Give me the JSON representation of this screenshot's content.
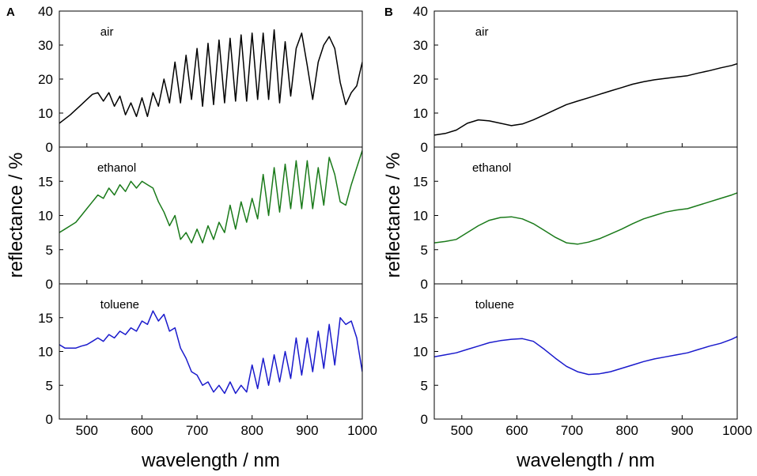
{
  "chart_data": [
    {
      "type": "line",
      "panel_letter": "A",
      "xlabel": "wavelength / nm",
      "ylabel": "reflectance / %",
      "xlim": [
        450,
        1000
      ],
      "x_ticks": [
        500,
        600,
        700,
        800,
        900,
        1000
      ],
      "x_tick_labels": [
        "500",
        "600",
        "700",
        "800",
        "900",
        "1000"
      ],
      "subplots": [
        {
          "label": "air",
          "color": "#000000",
          "ylim": [
            0,
            40
          ],
          "y_ticks": [
            0,
            10,
            20,
            30,
            40
          ],
          "y_tick_labels": [
            "0",
            "10",
            "20",
            "30",
            "40"
          ],
          "series": {
            "x": [
              450,
              470,
              480,
              490,
              500,
              510,
              520,
              530,
              540,
              550,
              560,
              570,
              580,
              590,
              600,
              610,
              620,
              630,
              640,
              650,
              660,
              670,
              680,
              690,
              700,
              710,
              720,
              730,
              740,
              750,
              760,
              770,
              780,
              790,
              800,
              810,
              820,
              830,
              840,
              850,
              860,
              870,
              880,
              890,
              900,
              910,
              920,
              930,
              940,
              950,
              960,
              970,
              980,
              990,
              1000
            ],
            "y": [
              7,
              9.5,
              11,
              12.5,
              14,
              15.5,
              16,
              13.5,
              16,
              12,
              15,
              9.5,
              13,
              9,
              14.5,
              9,
              16,
              12,
              20,
              13,
              25,
              13,
              27,
              14,
              29,
              12,
              30.5,
              12.5,
              31.5,
              13,
              32,
              13.5,
              33,
              13.5,
              33.5,
              14,
              33.5,
              14,
              34.5,
              13,
              31,
              15,
              29,
              33.5,
              24,
              14,
              25,
              30,
              32.5,
              29,
              19,
              12.5,
              16,
              18,
              25
            ]
          }
        },
        {
          "label": "ethanol",
          "color": "#1a7a1a",
          "ylim": [
            0,
            20
          ],
          "y_ticks": [
            0,
            5,
            10,
            15
          ],
          "y_tick_labels": [
            "0",
            "5",
            "10",
            "15"
          ],
          "series": {
            "x": [
              450,
              460,
              470,
              480,
              490,
              500,
              510,
              520,
              530,
              540,
              550,
              560,
              570,
              580,
              590,
              600,
              610,
              620,
              630,
              640,
              650,
              660,
              670,
              680,
              690,
              700,
              710,
              720,
              730,
              740,
              750,
              760,
              770,
              780,
              790,
              800,
              810,
              820,
              830,
              840,
              850,
              860,
              870,
              880,
              890,
              900,
              910,
              920,
              930,
              940,
              950,
              960,
              970,
              980,
              990,
              1000
            ],
            "y": [
              7.5,
              8,
              8.5,
              9,
              10,
              11,
              12,
              13,
              12.5,
              14,
              13,
              14.5,
              13.5,
              15,
              14,
              15,
              14.5,
              14,
              12,
              10.5,
              8.5,
              10,
              6.5,
              7.5,
              6,
              8,
              6,
              8.5,
              6.5,
              9,
              7.5,
              11.5,
              8,
              12,
              9,
              12.5,
              9.5,
              16,
              10,
              17,
              10.5,
              17.5,
              11,
              18,
              11,
              18,
              11,
              17,
              11.5,
              18.5,
              16,
              12,
              11.5,
              14.5,
              17,
              19.5
            ]
          }
        },
        {
          "label": "toluene",
          "color": "#1a1acc",
          "ylim": [
            0,
            20
          ],
          "y_ticks": [
            0,
            5,
            10,
            15
          ],
          "y_tick_labels": [
            "0",
            "5",
            "10",
            "15"
          ],
          "series": {
            "x": [
              450,
              460,
              470,
              480,
              490,
              500,
              510,
              520,
              530,
              540,
              550,
              560,
              570,
              580,
              590,
              600,
              610,
              620,
              630,
              640,
              650,
              660,
              670,
              680,
              690,
              700,
              710,
              720,
              730,
              740,
              750,
              760,
              770,
              780,
              790,
              800,
              810,
              820,
              830,
              840,
              850,
              860,
              870,
              880,
              890,
              900,
              910,
              920,
              930,
              940,
              950,
              960,
              970,
              980,
              990,
              1000
            ],
            "y": [
              11,
              10.5,
              10.5,
              10.5,
              10.8,
              11,
              11.5,
              12,
              11.5,
              12.5,
              12,
              13,
              12.5,
              13.5,
              13,
              14.5,
              14,
              16,
              14.5,
              15.5,
              13,
              13.5,
              10.5,
              9,
              7,
              6.5,
              5,
              5.5,
              4,
              5,
              3.8,
              5.5,
              3.8,
              5,
              4,
              8,
              4.5,
              9,
              5,
              9.5,
              5.5,
              10,
              6,
              12,
              6.5,
              12,
              7,
              13,
              7.5,
              14,
              8,
              15,
              14,
              14.5,
              12,
              7
            ]
          }
        }
      ]
    },
    {
      "type": "line",
      "panel_letter": "B",
      "xlabel": "wavelength / nm",
      "ylabel": "reflectance / %",
      "xlim": [
        450,
        1000
      ],
      "x_ticks": [
        500,
        600,
        700,
        800,
        900,
        1000
      ],
      "x_tick_labels": [
        "500",
        "600",
        "700",
        "800",
        "900",
        "1000"
      ],
      "subplots": [
        {
          "label": "air",
          "color": "#000000",
          "ylim": [
            0,
            40
          ],
          "y_ticks": [
            0,
            10,
            20,
            30,
            40
          ],
          "y_tick_labels": [
            "0",
            "10",
            "20",
            "30",
            "40"
          ],
          "series": {
            "x": [
              450,
              470,
              490,
              510,
              530,
              550,
              570,
              590,
              610,
              630,
              650,
              670,
              690,
              710,
              730,
              750,
              770,
              790,
              810,
              830,
              850,
              870,
              890,
              910,
              930,
              950,
              970,
              990,
              1000
            ],
            "y": [
              3.5,
              4,
              5,
              7,
              8,
              7.7,
              7,
              6.3,
              6.8,
              8,
              9.5,
              11,
              12.5,
              13.5,
              14.5,
              15.5,
              16.5,
              17.5,
              18.5,
              19.2,
              19.8,
              20.2,
              20.6,
              21,
              21.8,
              22.5,
              23.3,
              24,
              24.5
            ]
          }
        },
        {
          "label": "ethanol",
          "color": "#1a7a1a",
          "ylim": [
            0,
            20
          ],
          "y_ticks": [
            0,
            5,
            10,
            15
          ],
          "y_tick_labels": [
            "0",
            "5",
            "10",
            "15"
          ],
          "series": {
            "x": [
              450,
              470,
              490,
              510,
              530,
              550,
              570,
              590,
              610,
              630,
              650,
              670,
              690,
              710,
              730,
              750,
              770,
              790,
              810,
              830,
              850,
              870,
              890,
              910,
              930,
              950,
              970,
              990,
              1000
            ],
            "y": [
              6,
              6.2,
              6.5,
              7.5,
              8.5,
              9.3,
              9.7,
              9.8,
              9.5,
              8.8,
              7.8,
              6.8,
              6,
              5.8,
              6.1,
              6.6,
              7.3,
              8,
              8.8,
              9.5,
              10,
              10.5,
              10.8,
              11,
              11.5,
              12,
              12.5,
              13,
              13.3
            ]
          }
        },
        {
          "label": "toluene",
          "color": "#1a1acc",
          "ylim": [
            0,
            20
          ],
          "y_ticks": [
            0,
            5,
            10,
            15
          ],
          "y_tick_labels": [
            "0",
            "5",
            "10",
            "15"
          ],
          "series": {
            "x": [
              450,
              470,
              490,
              510,
              530,
              550,
              570,
              590,
              610,
              630,
              650,
              670,
              690,
              710,
              730,
              750,
              770,
              790,
              810,
              830,
              850,
              870,
              890,
              910,
              930,
              950,
              970,
              990,
              1000
            ],
            "y": [
              9.2,
              9.5,
              9.8,
              10.3,
              10.8,
              11.3,
              11.6,
              11.8,
              11.9,
              11.5,
              10.3,
              9,
              7.8,
              7,
              6.6,
              6.7,
              7,
              7.5,
              8,
              8.5,
              8.9,
              9.2,
              9.5,
              9.8,
              10.3,
              10.8,
              11.2,
              11.8,
              12.2
            ]
          }
        }
      ]
    }
  ]
}
